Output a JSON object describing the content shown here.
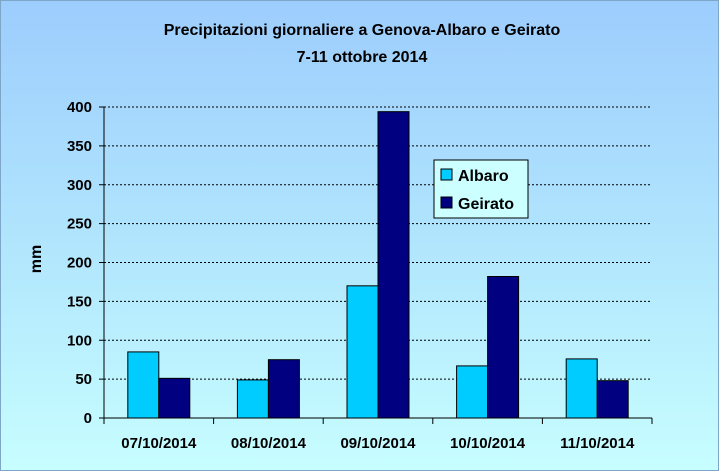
{
  "chart_data": {
    "type": "bar",
    "title": "Precipitazioni giornaliere a Genova-Albaro e Geirato",
    "subtitle": "7-11 ottobre 2014",
    "xlabel": "",
    "ylabel": "mm",
    "ylim": [
      0,
      400
    ],
    "yticks": [
      "0",
      "50",
      "100",
      "150",
      "200",
      "250",
      "300",
      "350",
      "400"
    ],
    "grid": true,
    "legend_position": "right",
    "categories": [
      "07/10/2014",
      "08/10/2014",
      "09/10/2014",
      "10/10/2014",
      "11/10/2014"
    ],
    "series": [
      {
        "name": "Albaro",
        "color": "#00ccff",
        "values": [
          85,
          49,
          170,
          67,
          76
        ]
      },
      {
        "name": "Geirato",
        "color": "#000080",
        "values": [
          51,
          75,
          394,
          182,
          48
        ]
      }
    ]
  }
}
